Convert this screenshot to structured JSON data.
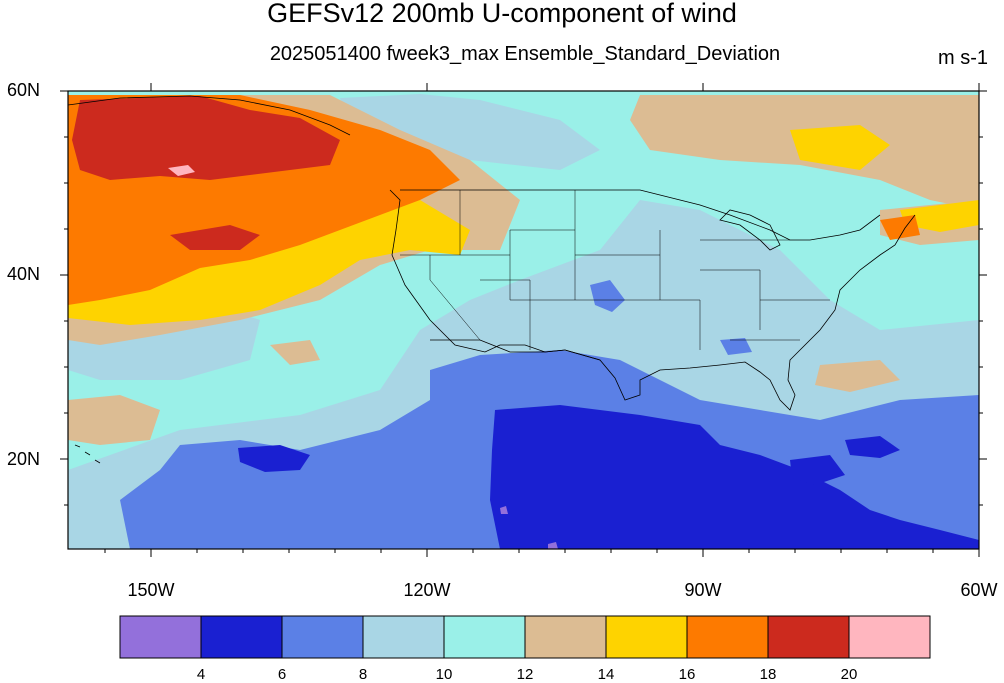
{
  "title": "GEFSv12 200mb U-component of wind",
  "subtitle": "2025051400 fweek3_max Ensemble_Standard_Deviation",
  "units": "m s-1",
  "latitude_labels": [
    "60N",
    "40N",
    "20N"
  ],
  "longitude_labels": [
    "150W",
    "120W",
    "90W",
    "60W"
  ],
  "map_extent": {
    "lon_min": -159,
    "lon_max": -60,
    "lat_min": 10,
    "lat_max": 60
  },
  "colorbar": {
    "tick_labels": [
      "4",
      "6",
      "8",
      "10",
      "12",
      "14",
      "16",
      "18",
      "20"
    ],
    "colors": [
      "#9370db",
      "#1a20d1",
      "#5b80e6",
      "#a9d6e5",
      "#9af0e8",
      "#dcbc93",
      "#fed300",
      "#fd7a00",
      "#cc2a1e",
      "#ffb6bf"
    ]
  },
  "field_colors": {
    "lt4": "#9370db",
    "c4_6": "#1a20d1",
    "c6_8": "#5b80e6",
    "c8_10": "#a9d6e5",
    "c10_12": "#9af0e8",
    "c12_14": "#dcbc93",
    "c14_16": "#fed300",
    "c16_18": "#fd7a00",
    "c18_20": "#cc2a1e",
    "gt20": "#ffb6bf"
  }
}
